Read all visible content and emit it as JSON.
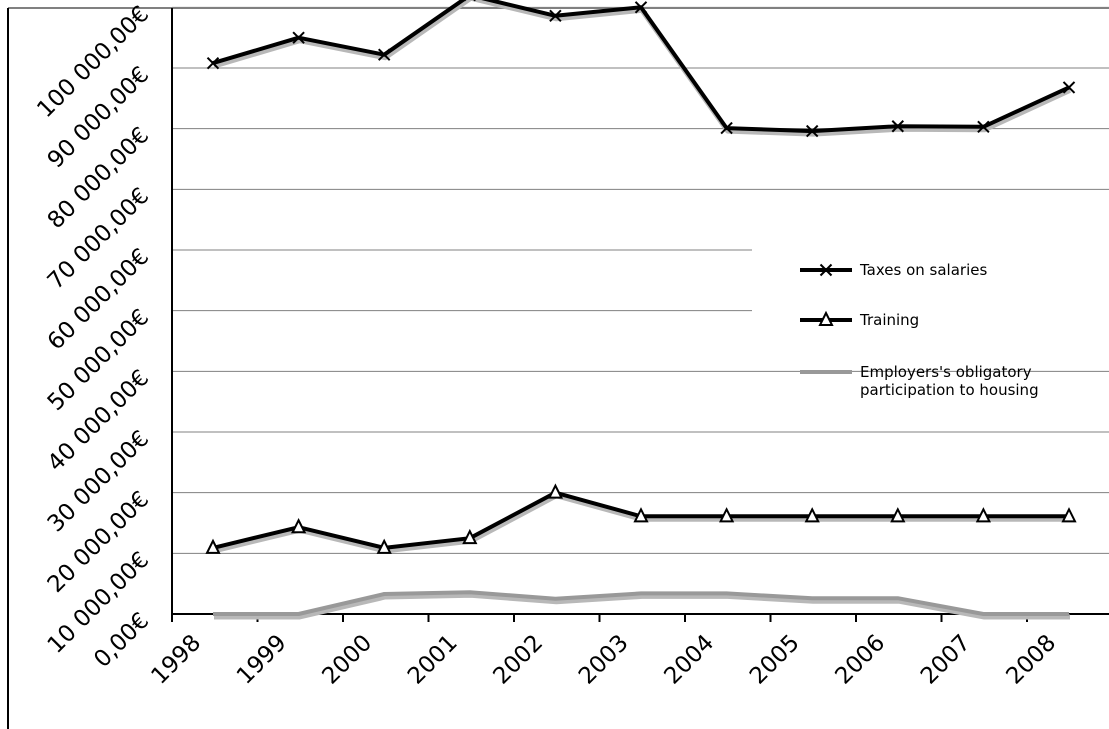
{
  "chart_data": {
    "type": "line",
    "categories": [
      "1998",
      "1999",
      "2000",
      "2001",
      "2002",
      "2003",
      "2004",
      "2005",
      "2006",
      "2007",
      "2008"
    ],
    "ylim": [
      0,
      100000000
    ],
    "y_ticks": [
      0,
      10000000,
      20000000,
      30000000,
      40000000,
      50000000,
      60000000,
      70000000,
      80000000,
      90000000,
      100000000
    ],
    "y_tick_labels": [
      "0,00€",
      "10 000,00€",
      "20 000,00€",
      "30 000,00€",
      "40 000,00€",
      "50 000,00€",
      "60 000,00€",
      "70 000,00€",
      "80 000,00€",
      "90 000,00€",
      "100 000,00€"
    ],
    "grid": true,
    "legend_position": "right",
    "series": [
      {
        "name": "Taxes on salaries",
        "marker": "x",
        "color": "#000000",
        "values": [
          90800000,
          95000000,
          92200000,
          102000000,
          98600000,
          100000000,
          80100000,
          79600000,
          80400000,
          80300000,
          86800000
        ]
      },
      {
        "name": "Training",
        "marker": "triangle",
        "color": "#000000",
        "values": [
          10900000,
          14300000,
          10900000,
          12500000,
          20000000,
          16100000,
          16100000,
          16100000,
          16100000,
          16100000,
          16100000
        ]
      },
      {
        "name_lines": [
          "Employers's obligatory",
          "participation to housing"
        ],
        "marker": "none",
        "color": "#999999",
        "values": [
          0,
          0,
          3300000,
          3600000,
          2500000,
          3400000,
          3400000,
          2600000,
          2600000,
          0,
          0
        ]
      }
    ]
  }
}
